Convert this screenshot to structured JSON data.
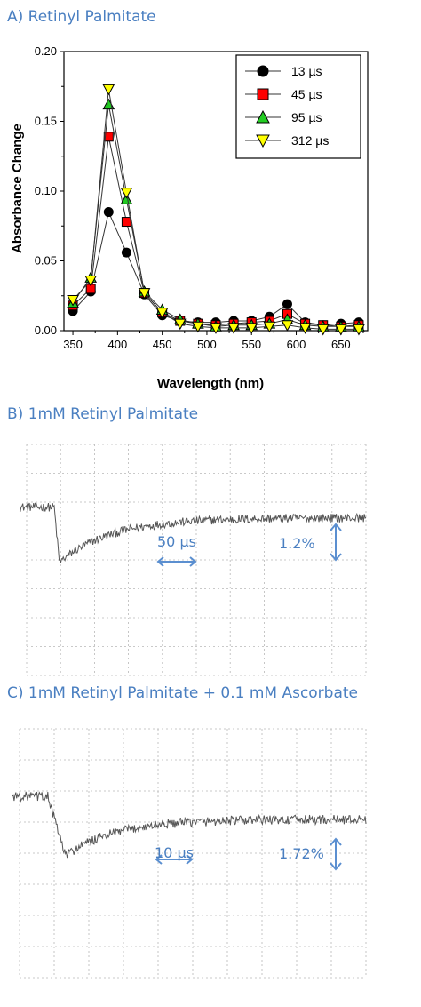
{
  "panels": {
    "a": {
      "title": "A) Retinyl Palmitate"
    },
    "b": {
      "title": "B) 1mM Retinyl Palmitate"
    },
    "c": {
      "title": "C) 1mM Retinyl Palmitate + 0.1 mM Ascorbate"
    }
  },
  "chart_data": [
    {
      "type": "line",
      "xlabel": "Wavelength (nm)",
      "ylabel": "Absorbance Change",
      "xlim": [
        340,
        680
      ],
      "ylim": [
        0,
        0.2
      ],
      "xticks": [
        350,
        400,
        450,
        500,
        550,
        600,
        650
      ],
      "yticks": [
        0.0,
        0.05,
        0.1,
        0.15,
        0.2
      ],
      "grid": false,
      "legend": "top-right",
      "x": [
        350,
        370,
        390,
        410,
        430,
        450,
        470,
        490,
        510,
        530,
        550,
        570,
        590,
        610,
        630,
        650,
        670
      ],
      "series": [
        {
          "name": "13 µs",
          "color": "#000000",
          "marker": "circle",
          "values": [
            0.014,
            0.028,
            0.085,
            0.056,
            0.026,
            0.011,
            0.007,
            0.006,
            0.006,
            0.007,
            0.007,
            0.01,
            0.019,
            0.006,
            0.004,
            0.005,
            0.006
          ]
        },
        {
          "name": "45 µs",
          "color": "#ff0000",
          "marker": "square",
          "values": [
            0.018,
            0.03,
            0.139,
            0.078,
            0.027,
            0.013,
            0.007,
            0.005,
            0.004,
            0.005,
            0.006,
            0.007,
            0.012,
            0.005,
            0.004,
            0.003,
            0.004
          ]
        },
        {
          "name": "95 µs",
          "color": "#22cc22",
          "marker": "triangle-up",
          "values": [
            0.02,
            0.038,
            0.162,
            0.094,
            0.028,
            0.015,
            0.008,
            0.005,
            0.003,
            0.004,
            0.004,
            0.005,
            0.008,
            0.004,
            0.003,
            0.003,
            0.003
          ]
        },
        {
          "name": "312 µs",
          "color": "#ffff00",
          "marker": "triangle-down",
          "values": [
            0.022,
            0.036,
            0.173,
            0.099,
            0.027,
            0.013,
            0.005,
            0.003,
            0.002,
            0.002,
            0.002,
            0.003,
            0.004,
            0.002,
            0.001,
            0.001,
            0.001
          ]
        }
      ]
    },
    {
      "type": "line",
      "grid": true,
      "scale_labels": {
        "time": "50 µs",
        "amplitude": "1.2%"
      },
      "trace": {
        "baseline": 0.02,
        "minimum": -0.55,
        "recovered_level": -0.09,
        "step_time": 0.1,
        "min_time": 0.115,
        "tau": 0.15
      }
    },
    {
      "type": "line",
      "grid": true,
      "scale_labels": {
        "time": "10 µs",
        "amplitude": "1.72%"
      },
      "trace": {
        "baseline": 0.02,
        "minimum": -0.55,
        "recovered_level": -0.2,
        "step_time": 0.1,
        "min_time": 0.15,
        "tau": 0.14
      }
    }
  ]
}
